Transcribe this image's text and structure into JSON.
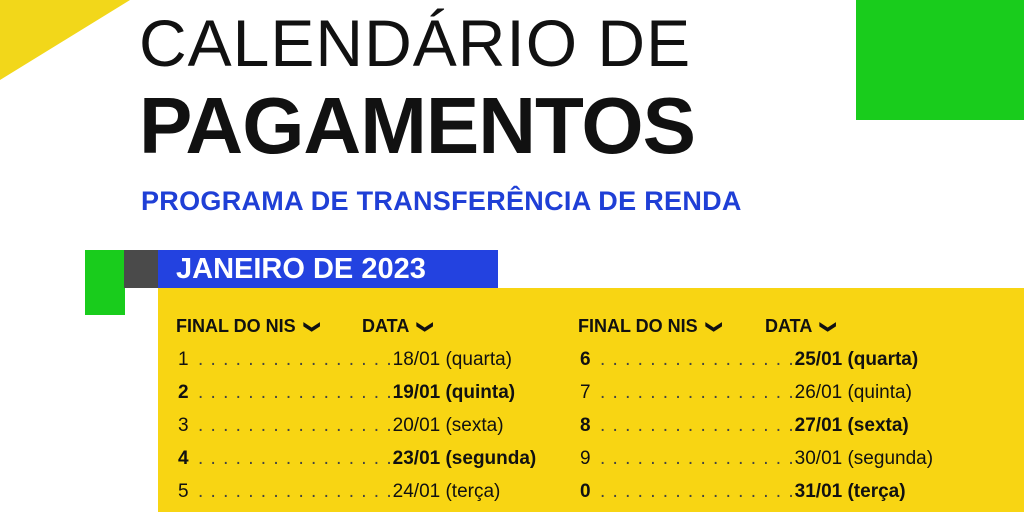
{
  "title": {
    "line1": "CALENDÁRIO DE",
    "line2": "PAGAMENTOS",
    "subtitle": "PROGRAMA DE TRANSFERÊNCIA DE RENDA"
  },
  "month": "JANEIRO DE 2023",
  "headers": {
    "final_nis": "FINAL DO NIS",
    "data": "DATA",
    "chevron": "❯"
  },
  "dots": ". . . . . . . . . . . . . . . .",
  "left_rows": [
    {
      "nis": "1",
      "date": "18/01 (quarta)",
      "bold": false
    },
    {
      "nis": "2",
      "date": "19/01 (quinta)",
      "bold": true
    },
    {
      "nis": "3",
      "date": "20/01 (sexta)",
      "bold": false
    },
    {
      "nis": "4",
      "date": "23/01 (segunda)",
      "bold": true
    },
    {
      "nis": "5",
      "date": "24/01 (terça)",
      "bold": false
    }
  ],
  "right_rows": [
    {
      "nis": "6",
      "date": "25/01 (quarta)",
      "bold": true
    },
    {
      "nis": "7",
      "date": "26/01 (quinta)",
      "bold": false
    },
    {
      "nis": "8",
      "date": "27/01 (sexta)",
      "bold": true
    },
    {
      "nis": "9",
      "date": "30/01 (segunda)",
      "bold": false
    },
    {
      "nis": "0",
      "date": "31/01 (terça)",
      "bold": true
    }
  ],
  "colors": {
    "yellow": "#f8d513",
    "green": "#19cc1c",
    "blue": "#2342e0",
    "subtitle_blue": "#1f3fd6"
  }
}
